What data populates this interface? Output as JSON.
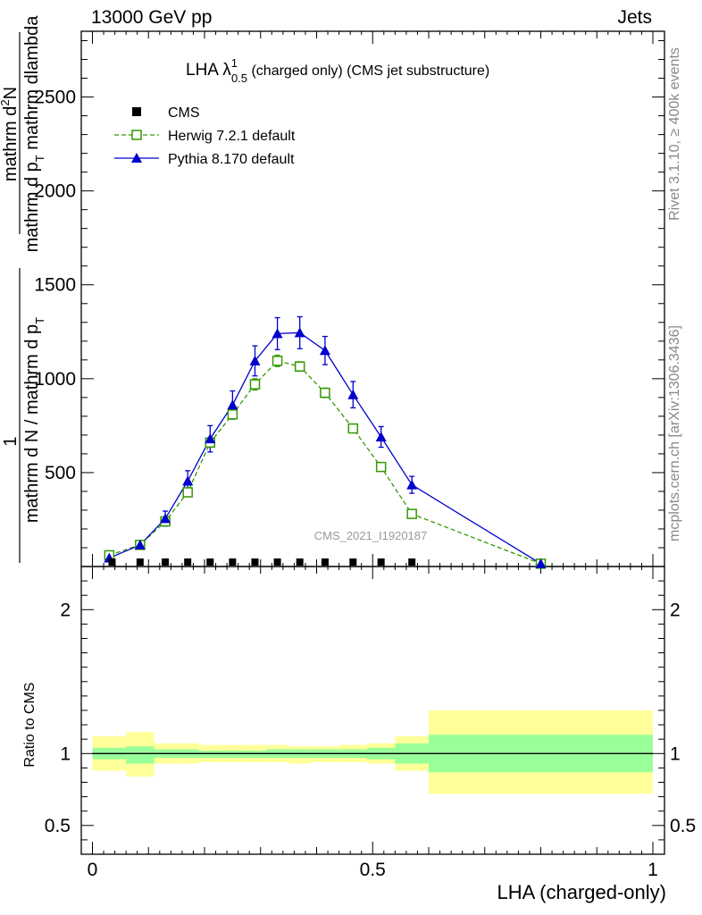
{
  "header": {
    "energy_label": "13000 GeV pp",
    "category_label": "Jets"
  },
  "side_text": {
    "rivet_label": "Rivet 3.1.10, ≥ 400k events",
    "site_label": "mcplots.cern.ch [arXiv:1306.3436]"
  },
  "chart_data": [
    {
      "type": "line",
      "title": "LHA λ",
      "title_sup": "1",
      "title_sub": "0.5",
      "title_rest": " (charged only) (CMS jet substructure)",
      "watermark": "CMS_2021_I1920187",
      "ylabel_numerator": "1",
      "ylabel_denominator_lines": [
        "mathrm d N / mathrm d p",
        "mathrm d p",
        "T",
        "mathrm d N",
        "mathrm d p",
        "mathrm dlambda"
      ],
      "ylabel_line1": "mathrm d N / mathrm d p",
      "ylabel_line1_sub": "T",
      "ylabel_line2": "mathrm d",
      "ylabel_numerator_text": "mathrm d",
      "ylabel_numerator_sup": "2",
      "ylabel_numerator_rest": "N",
      "ylabel_denominator": "mathrm d p",
      "ylabel_denominator_sub": "T",
      "ylabel_denominator_rest": " mathrm dlambda",
      "xlim": [
        -0.02,
        1.02
      ],
      "ylim": [
        0,
        2850
      ],
      "yticks": [
        500,
        1000,
        1500,
        2000,
        2500
      ],
      "ytick_labels": [
        "500",
        "1000",
        "1500",
        "2000",
        "2500"
      ],
      "legend": {
        "placement": "top-left",
        "entries": [
          "CMS",
          "Herwig 7.2.1 default",
          "Pythia 8.170 default"
        ]
      },
      "series": [
        {
          "name": "CMS",
          "color": "#000000",
          "marker": "filled-square",
          "x": [
            0.035,
            0.085,
            0.13,
            0.17,
            0.21,
            0.25,
            0.29,
            0.33,
            0.37,
            0.415,
            0.465,
            0.515,
            0.57
          ],
          "y": [
            0,
            0,
            0,
            0,
            0,
            0,
            0,
            0,
            0,
            0,
            0,
            0,
            0
          ]
        },
        {
          "name": "Herwig 7.2.1 default",
          "color": "#339900",
          "marker": "open-square",
          "line": "dashed",
          "x": [
            0.03,
            0.085,
            0.13,
            0.17,
            0.21,
            0.25,
            0.29,
            0.33,
            0.37,
            0.415,
            0.465,
            0.515,
            0.57,
            0.8
          ],
          "y": [
            60,
            115,
            240,
            395,
            660,
            810,
            970,
            1095,
            1065,
            925,
            735,
            530,
            280,
            15
          ],
          "yerr": [
            10,
            10,
            15,
            20,
            25,
            25,
            30,
            30,
            25,
            25,
            20,
            15,
            10,
            5
          ]
        },
        {
          "name": "Pythia 8.170 default",
          "color": "#0000cc",
          "marker": "filled-triangle",
          "line": "solid",
          "x": [
            0.03,
            0.085,
            0.13,
            0.17,
            0.21,
            0.25,
            0.29,
            0.33,
            0.37,
            0.415,
            0.465,
            0.515,
            0.57,
            0.8
          ],
          "y": [
            45,
            115,
            255,
            455,
            680,
            860,
            1095,
            1240,
            1245,
            1150,
            915,
            690,
            435,
            15
          ],
          "yerr": [
            15,
            20,
            40,
            55,
            70,
            75,
            80,
            85,
            85,
            75,
            70,
            55,
            45,
            10
          ]
        }
      ]
    },
    {
      "type": "area",
      "ylabel": "Ratio to CMS",
      "xlabel": "LHA (charged-only)",
      "xlim": [
        -0.02,
        1.02
      ],
      "ylim": [
        0.3,
        2.3
      ],
      "yticks": [
        0.5,
        1,
        2
      ],
      "ytick_labels": [
        "0.5",
        "1",
        "2"
      ],
      "xticks": [
        0,
        0.5,
        1
      ],
      "xtick_labels": [
        "0",
        "0.5",
        "1"
      ],
      "reference": 1,
      "bands": [
        {
          "x0": 0.0,
          "x1": 0.06,
          "yellow": [
            0.88,
            1.12
          ],
          "green": [
            0.96,
            1.04
          ]
        },
        {
          "x0": 0.06,
          "x1": 0.11,
          "yellow": [
            0.84,
            1.15
          ],
          "green": [
            0.93,
            1.05
          ]
        },
        {
          "x0": 0.11,
          "x1": 0.15,
          "yellow": [
            0.93,
            1.07
          ],
          "green": [
            0.97,
            1.03
          ]
        },
        {
          "x0": 0.15,
          "x1": 0.19,
          "yellow": [
            0.93,
            1.07
          ],
          "green": [
            0.97,
            1.03
          ]
        },
        {
          "x0": 0.19,
          "x1": 0.23,
          "yellow": [
            0.94,
            1.06
          ],
          "green": [
            0.97,
            1.02
          ]
        },
        {
          "x0": 0.23,
          "x1": 0.27,
          "yellow": [
            0.94,
            1.06
          ],
          "green": [
            0.97,
            1.02
          ]
        },
        {
          "x0": 0.27,
          "x1": 0.31,
          "yellow": [
            0.94,
            1.06
          ],
          "green": [
            0.97,
            1.02
          ]
        },
        {
          "x0": 0.31,
          "x1": 0.35,
          "yellow": [
            0.94,
            1.06
          ],
          "green": [
            0.97,
            1.03
          ]
        },
        {
          "x0": 0.35,
          "x1": 0.39,
          "yellow": [
            0.93,
            1.05
          ],
          "green": [
            0.97,
            1.03
          ]
        },
        {
          "x0": 0.39,
          "x1": 0.44,
          "yellow": [
            0.94,
            1.05
          ],
          "green": [
            0.97,
            1.03
          ]
        },
        {
          "x0": 0.44,
          "x1": 0.49,
          "yellow": [
            0.94,
            1.06
          ],
          "green": [
            0.97,
            1.03
          ]
        },
        {
          "x0": 0.49,
          "x1": 0.54,
          "yellow": [
            0.93,
            1.07
          ],
          "green": [
            0.96,
            1.04
          ]
        },
        {
          "x0": 0.54,
          "x1": 0.6,
          "yellow": [
            0.88,
            1.12
          ],
          "green": [
            0.93,
            1.07
          ]
        },
        {
          "x0": 0.6,
          "x1": 1.0,
          "yellow": [
            0.72,
            1.3
          ],
          "green": [
            0.87,
            1.13
          ]
        }
      ],
      "band_colors": {
        "yellow": "#ffff99",
        "green": "#99ff99"
      }
    }
  ]
}
